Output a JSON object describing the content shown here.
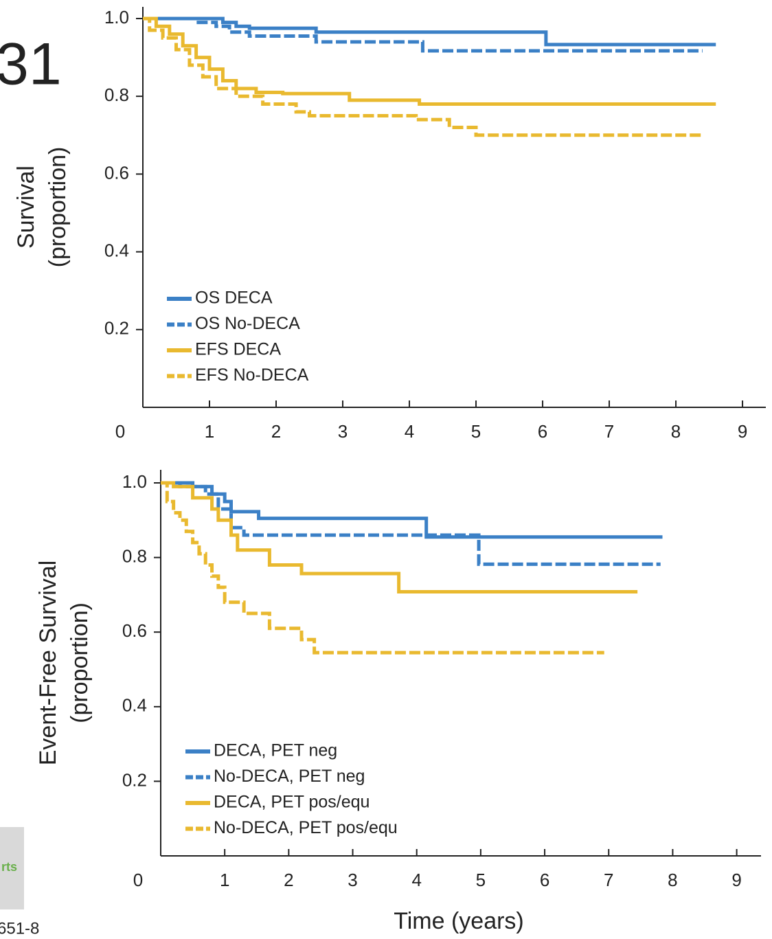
{
  "fragments": {
    "slide_number": "31",
    "logo_text": "rts",
    "reference": "651-8"
  },
  "chart_data": [
    {
      "type": "line",
      "step": true,
      "ylabel": [
        "Survival",
        "(proportion)"
      ],
      "xlim": [
        0,
        9.35
      ],
      "ylim": [
        0,
        1.03
      ],
      "xticks": [
        0,
        1,
        2,
        3,
        4,
        5,
        6,
        7,
        8,
        9
      ],
      "yticks": [
        0.2,
        0.4,
        0.6,
        0.8,
        {
          "value": 1,
          "label": "1.0"
        }
      ],
      "legend": "lower left",
      "series": [
        {
          "name": "OS DECA",
          "color": "#3b80c6",
          "dashed": false,
          "x": [
            0,
            1.2,
            1.4,
            1.6,
            2.6,
            6.05,
            8.6
          ],
          "values": [
            1,
            0.99,
            0.98,
            0.975,
            0.965,
            0.933,
            0.933
          ]
        },
        {
          "name": "OS No-DECA",
          "color": "#3b80c6",
          "dashed": true,
          "x": [
            0,
            0.8,
            1.1,
            1.3,
            1.6,
            2.6,
            4.2,
            8.4
          ],
          "values": [
            1,
            0.99,
            0.98,
            0.965,
            0.955,
            0.94,
            0.917,
            0.917
          ]
        },
        {
          "name": "EFS DECA",
          "color": "#e9b92f",
          "dashed": false,
          "x": [
            0,
            0.2,
            0.4,
            0.6,
            0.8,
            1.0,
            1.2,
            1.4,
            1.7,
            2.1,
            3.1,
            4.15,
            8.6
          ],
          "values": [
            1,
            0.98,
            0.96,
            0.93,
            0.9,
            0.87,
            0.84,
            0.82,
            0.81,
            0.807,
            0.79,
            0.78,
            0.78
          ]
        },
        {
          "name": "EFS No-DECA",
          "color": "#e9b92f",
          "dashed": true,
          "x": [
            0,
            0.1,
            0.3,
            0.5,
            0.7,
            0.9,
            1.1,
            1.4,
            1.8,
            2.3,
            2.5,
            4.1,
            4.6,
            5.0,
            8.4
          ],
          "values": [
            1,
            0.97,
            0.95,
            0.92,
            0.88,
            0.85,
            0.82,
            0.8,
            0.78,
            0.76,
            0.75,
            0.74,
            0.72,
            0.7,
            0.7
          ]
        }
      ]
    },
    {
      "type": "line",
      "step": true,
      "xlabel": "Time (years)",
      "ylabel": [
        "Event-Free Survival",
        "(proportion)"
      ],
      "xlim": [
        0,
        9.38
      ],
      "ylim": [
        0,
        1.035
      ],
      "xticks": [
        0,
        1,
        2,
        3,
        4,
        5,
        6,
        7,
        8,
        9
      ],
      "yticks": [
        0.2,
        0.4,
        0.6,
        0.8,
        {
          "value": 1,
          "label": "1.0"
        }
      ],
      "legend": "lower left",
      "series": [
        {
          "name": "DECA, PET neg",
          "color": "#3b80c6",
          "dashed": false,
          "x": [
            0,
            0.5,
            0.8,
            1.0,
            1.1,
            1.53,
            4.15,
            7.84
          ],
          "values": [
            1,
            0.99,
            0.97,
            0.95,
            0.923,
            0.905,
            0.855,
            0.855
          ]
        },
        {
          "name": "No-DECA, PET neg",
          "color": "#3b80c6",
          "dashed": true,
          "x": [
            0,
            0.3,
            0.7,
            0.9,
            1.1,
            1.3,
            4.97,
            7.81
          ],
          "values": [
            1,
            0.99,
            0.97,
            0.93,
            0.88,
            0.86,
            0.782,
            0.782
          ]
        },
        {
          "name": "DECA, PET pos/equ",
          "color": "#e9b92f",
          "dashed": false,
          "x": [
            0,
            0.2,
            0.5,
            0.8,
            0.9,
            1.1,
            1.2,
            1.7,
            2.2,
            3.72,
            7.45
          ],
          "values": [
            1,
            0.99,
            0.96,
            0.93,
            0.9,
            0.86,
            0.82,
            0.78,
            0.757,
            0.708,
            0.708
          ]
        },
        {
          "name": "No-DECA, PET pos/equ",
          "color": "#e9b92f",
          "dashed": true,
          "x": [
            0,
            0.1,
            0.2,
            0.3,
            0.4,
            0.5,
            0.6,
            0.7,
            0.8,
            0.9,
            1.0,
            1.3,
            1.7,
            2.2,
            2.4,
            6.93
          ],
          "values": [
            1,
            0.95,
            0.92,
            0.9,
            0.87,
            0.84,
            0.81,
            0.78,
            0.75,
            0.72,
            0.68,
            0.65,
            0.61,
            0.58,
            0.545,
            0.545
          ]
        }
      ]
    }
  ]
}
